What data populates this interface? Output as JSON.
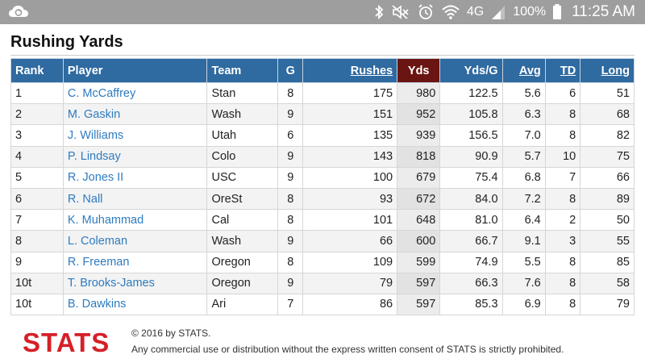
{
  "status_bar": {
    "network": "4G",
    "battery": "100%",
    "time": "11:25 AM"
  },
  "page": {
    "title": "Rushing Yards"
  },
  "table": {
    "headers": {
      "rank": "Rank",
      "player": "Player",
      "team": "Team",
      "g": "G",
      "rushes": "Rushes",
      "yds": "Yds",
      "ydsg": "Yds/G",
      "avg": "Avg",
      "td": "TD",
      "long": "Long"
    },
    "rows": [
      {
        "rank": "1",
        "player": "C. McCaffrey",
        "team": "Stan",
        "g": "8",
        "rushes": "175",
        "yds": "980",
        "ydsg": "122.5",
        "avg": "5.6",
        "td": "6",
        "long": "51"
      },
      {
        "rank": "2",
        "player": "M. Gaskin",
        "team": "Wash",
        "g": "9",
        "rushes": "151",
        "yds": "952",
        "ydsg": "105.8",
        "avg": "6.3",
        "td": "8",
        "long": "68"
      },
      {
        "rank": "3",
        "player": "J. Williams",
        "team": "Utah",
        "g": "6",
        "rushes": "135",
        "yds": "939",
        "ydsg": "156.5",
        "avg": "7.0",
        "td": "8",
        "long": "82"
      },
      {
        "rank": "4",
        "player": "P. Lindsay",
        "team": "Colo",
        "g": "9",
        "rushes": "143",
        "yds": "818",
        "ydsg": "90.9",
        "avg": "5.7",
        "td": "10",
        "long": "75"
      },
      {
        "rank": "5",
        "player": "R. Jones II",
        "team": "USC",
        "g": "9",
        "rushes": "100",
        "yds": "679",
        "ydsg": "75.4",
        "avg": "6.8",
        "td": "7",
        "long": "66"
      },
      {
        "rank": "6",
        "player": "R. Nall",
        "team": "OreSt",
        "g": "8",
        "rushes": "93",
        "yds": "672",
        "ydsg": "84.0",
        "avg": "7.2",
        "td": "8",
        "long": "89"
      },
      {
        "rank": "7",
        "player": "K. Muhammad",
        "team": "Cal",
        "g": "8",
        "rushes": "101",
        "yds": "648",
        "ydsg": "81.0",
        "avg": "6.4",
        "td": "2",
        "long": "50"
      },
      {
        "rank": "8",
        "player": "L. Coleman",
        "team": "Wash",
        "g": "9",
        "rushes": "66",
        "yds": "600",
        "ydsg": "66.7",
        "avg": "9.1",
        "td": "3",
        "long": "55"
      },
      {
        "rank": "9",
        "player": "R. Freeman",
        "team": "Oregon",
        "g": "8",
        "rushes": "109",
        "yds": "599",
        "ydsg": "74.9",
        "avg": "5.5",
        "td": "8",
        "long": "85"
      },
      {
        "rank": "10t",
        "player": "T. Brooks-James",
        "team": "Oregon",
        "g": "9",
        "rushes": "79",
        "yds": "597",
        "ydsg": "66.3",
        "avg": "7.6",
        "td": "8",
        "long": "58"
      },
      {
        "rank": "10t",
        "player": "B. Dawkins",
        "team": "Ari",
        "g": "7",
        "rushes": "86",
        "yds": "597",
        "ydsg": "85.3",
        "avg": "6.9",
        "td": "8",
        "long": "79"
      }
    ]
  },
  "footer": {
    "logo_text": "STATS",
    "copyright": "© 2016 by STATS.",
    "disclaimer": "Any commercial use or distribution without the express written consent of STATS is strictly prohibited."
  },
  "colors": {
    "header_bg": "#2f6aa0",
    "sorted_header_bg": "#6b1512",
    "player_link": "#2e7bbf",
    "logo_red": "#d52027",
    "status_bar_bg": "#9e9e9e"
  },
  "icons": [
    "cloud-sync-icon",
    "bluetooth-icon",
    "mute-icon",
    "alarm-icon",
    "wifi-icon",
    "signal-icon",
    "battery-icon"
  ]
}
